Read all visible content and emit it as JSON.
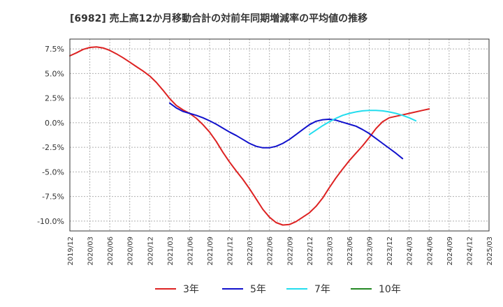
{
  "chart_data": {
    "type": "line",
    "title": "[6982]  売上高12か月移動合計の対前年同期増減率の平均値の推移",
    "xlabel": "",
    "ylabel": "",
    "ylim": [
      -11.0,
      8.5
    ],
    "yticks": [
      7.5,
      5.0,
      2.5,
      0.0,
      -2.5,
      -5.0,
      -7.5,
      -10.0
    ],
    "ytick_labels": [
      "7.5%",
      "5.0%",
      "2.5%",
      "0.0%",
      "-2.5%",
      "-5.0%",
      "-7.5%",
      "-10.0%"
    ],
    "xtick_labels": [
      "2019/12",
      "2020/03",
      "2020/06",
      "2020/09",
      "2020/12",
      "2021/03",
      "2021/06",
      "2021/09",
      "2021/12",
      "2022/03",
      "2022/06",
      "2022/09",
      "2022/12",
      "2023/03",
      "2023/06",
      "2023/09",
      "2023/12",
      "2024/03",
      "2024/06",
      "2024/09",
      "2024/12",
      "2025/03"
    ],
    "grid": true,
    "legend_position": "bottom",
    "series": [
      {
        "name": "3年",
        "color": "#dd2222",
        "points": [
          [
            "2019/12",
            6.8
          ],
          [
            "2020/01",
            7.1
          ],
          [
            "2020/02",
            7.45
          ],
          [
            "2020/03",
            7.65
          ],
          [
            "2020/04",
            7.7
          ],
          [
            "2020/05",
            7.6
          ],
          [
            "2020/06",
            7.35
          ],
          [
            "2020/07",
            7.0
          ],
          [
            "2020/08",
            6.6
          ],
          [
            "2020/09",
            6.15
          ],
          [
            "2020/10",
            5.7
          ],
          [
            "2020/11",
            5.25
          ],
          [
            "2020/12",
            4.75
          ],
          [
            "2021/01",
            4.1
          ],
          [
            "2021/02",
            3.3
          ],
          [
            "2021/03",
            2.45
          ],
          [
            "2021/04",
            1.75
          ],
          [
            "2021/05",
            1.3
          ],
          [
            "2021/06",
            0.95
          ],
          [
            "2021/07",
            0.45
          ],
          [
            "2021/08",
            -0.2
          ],
          [
            "2021/09",
            -0.95
          ],
          [
            "2021/10",
            -1.9
          ],
          [
            "2021/11",
            -3.0
          ],
          [
            "2021/12",
            -4.0
          ],
          [
            "2022/01",
            -4.9
          ],
          [
            "2022/02",
            -5.75
          ],
          [
            "2022/03",
            -6.7
          ],
          [
            "2022/04",
            -7.75
          ],
          [
            "2022/05",
            -8.8
          ],
          [
            "2022/06",
            -9.6
          ],
          [
            "2022/07",
            -10.15
          ],
          [
            "2022/08",
            -10.4
          ],
          [
            "2022/09",
            -10.35
          ],
          [
            "2022/10",
            -10.05
          ],
          [
            "2022/11",
            -9.6
          ],
          [
            "2022/12",
            -9.15
          ],
          [
            "2023/01",
            -8.5
          ],
          [
            "2023/02",
            -7.65
          ],
          [
            "2023/03",
            -6.6
          ],
          [
            "2023/04",
            -5.6
          ],
          [
            "2023/05",
            -4.7
          ],
          [
            "2023/06",
            -3.85
          ],
          [
            "2023/07",
            -3.1
          ],
          [
            "2023/08",
            -2.35
          ],
          [
            "2023/09",
            -1.5
          ],
          [
            "2023/10",
            -0.6
          ],
          [
            "2023/11",
            0.1
          ],
          [
            "2023/12",
            0.5
          ],
          [
            "2024/01",
            0.65
          ],
          [
            "2024/02",
            0.8
          ],
          [
            "2024/03",
            0.95
          ],
          [
            "2024/04",
            1.1
          ],
          [
            "2024/05",
            1.25
          ],
          [
            "2024/06",
            1.4
          ]
        ]
      },
      {
        "name": "5年",
        "color": "#1111cc",
        "points": [
          [
            "2021/03",
            2.0
          ],
          [
            "2021/04",
            1.5
          ],
          [
            "2021/05",
            1.15
          ],
          [
            "2021/06",
            0.95
          ],
          [
            "2021/07",
            0.75
          ],
          [
            "2021/08",
            0.5
          ],
          [
            "2021/09",
            0.2
          ],
          [
            "2021/10",
            -0.15
          ],
          [
            "2021/11",
            -0.55
          ],
          [
            "2021/12",
            -0.95
          ],
          [
            "2022/01",
            -1.3
          ],
          [
            "2022/02",
            -1.7
          ],
          [
            "2022/03",
            -2.1
          ],
          [
            "2022/04",
            -2.4
          ],
          [
            "2022/05",
            -2.55
          ],
          [
            "2022/06",
            -2.55
          ],
          [
            "2022/07",
            -2.4
          ],
          [
            "2022/08",
            -2.1
          ],
          [
            "2022/09",
            -1.7
          ],
          [
            "2022/10",
            -1.2
          ],
          [
            "2022/11",
            -0.7
          ],
          [
            "2022/12",
            -0.2
          ],
          [
            "2023/01",
            0.15
          ],
          [
            "2023/02",
            0.3
          ],
          [
            "2023/03",
            0.35
          ],
          [
            "2023/04",
            0.25
          ],
          [
            "2023/05",
            0.05
          ],
          [
            "2023/06",
            -0.15
          ],
          [
            "2023/07",
            -0.35
          ],
          [
            "2023/08",
            -0.7
          ],
          [
            "2023/09",
            -1.1
          ],
          [
            "2023/10",
            -1.6
          ],
          [
            "2023/11",
            -2.1
          ],
          [
            "2023/12",
            -2.6
          ],
          [
            "2024/01",
            -3.1
          ],
          [
            "2024/02",
            -3.65
          ]
        ]
      },
      {
        "name": "7年",
        "color": "#22ddee",
        "points": [
          [
            "2022/12",
            -1.2
          ],
          [
            "2023/01",
            -0.75
          ],
          [
            "2023/02",
            -0.3
          ],
          [
            "2023/03",
            0.1
          ],
          [
            "2023/04",
            0.45
          ],
          [
            "2023/05",
            0.75
          ],
          [
            "2023/06",
            0.95
          ],
          [
            "2023/07",
            1.1
          ],
          [
            "2023/08",
            1.2
          ],
          [
            "2023/09",
            1.25
          ],
          [
            "2023/10",
            1.25
          ],
          [
            "2023/11",
            1.2
          ],
          [
            "2023/12",
            1.1
          ],
          [
            "2024/01",
            0.95
          ],
          [
            "2024/02",
            0.75
          ],
          [
            "2024/03",
            0.5
          ],
          [
            "2024/04",
            0.2
          ]
        ]
      },
      {
        "name": "10年",
        "color": "#228822",
        "points": []
      }
    ]
  }
}
